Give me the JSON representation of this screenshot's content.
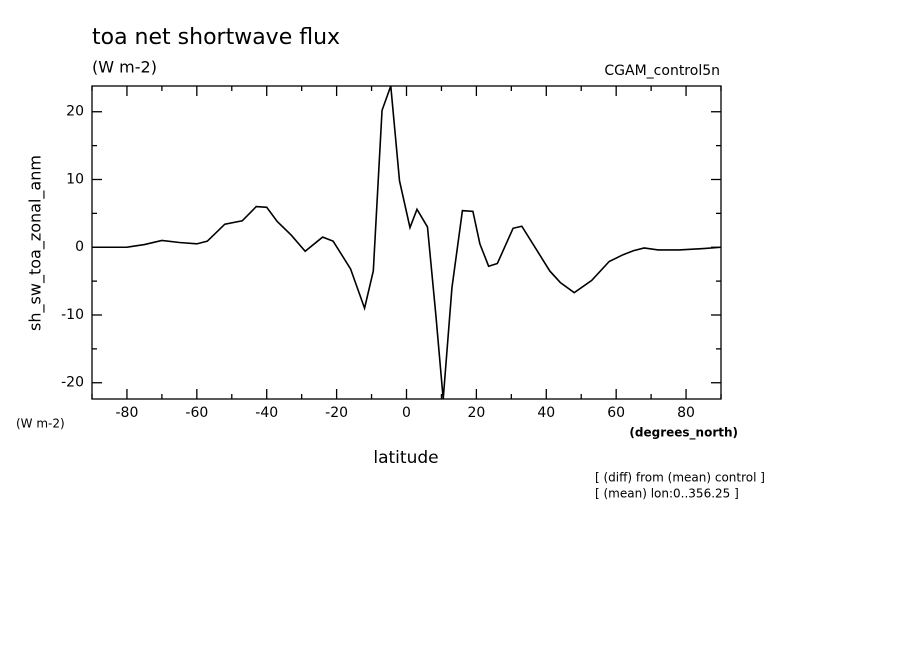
{
  "chart_data": {
    "type": "line",
    "title": "toa net shortwave flux",
    "subtitle": "(W m-2)",
    "dataset": "CGAM_control5n",
    "ylabel": "sh_sw_toa_zonal_anm",
    "yunits": "(W m-2)",
    "xlabel": "latitude",
    "xunits": "(degrees_north)",
    "annotations": [
      "[ (diff) from (mean) control ]",
      "[ (mean) lon:0..356.25 ]"
    ],
    "x": [
      -90,
      -80,
      -75,
      -70,
      -65,
      -60,
      -57,
      -52,
      -47,
      -43,
      -40,
      -37,
      -33,
      -29,
      -24,
      -21,
      -16,
      -12,
      -9.5,
      -7,
      -4.5,
      -2,
      1,
      3,
      6,
      8.4,
      10.5,
      13,
      16,
      19,
      21,
      23.5,
      26,
      30.5,
      33,
      37,
      41,
      44,
      48,
      53,
      58,
      62,
      65,
      68,
      72,
      78,
      85,
      90
    ],
    "series": [
      {
        "name": "sh_sw_toa_zonal_anm",
        "color": "#000000",
        "values": [
          0,
          0,
          0.4,
          1.0,
          0.7,
          0.5,
          0.9,
          3.4,
          3.9,
          6.0,
          5.9,
          3.8,
          1.8,
          -0.6,
          1.5,
          0.9,
          -3.2,
          -9.0,
          -3.5,
          20.2,
          23.8,
          9.8,
          2.9,
          5.6,
          3.0,
          -10,
          -22.4,
          -6,
          5.4,
          5.3,
          0.5,
          -2.8,
          -2.4,
          2.8,
          3.1,
          -0.2,
          -3.5,
          -5.2,
          -6.7,
          -4.9,
          -2.1,
          -1.1,
          -0.5,
          -0.1,
          -0.4,
          -0.4,
          -0.2,
          0
        ]
      }
    ],
    "xlim": [
      -90,
      90
    ],
    "ylim": [
      -22.4,
      23.8
    ],
    "xticks": [
      -80,
      -60,
      -40,
      -20,
      0,
      20,
      40,
      60,
      80
    ],
    "yticks": [
      -20,
      -10,
      0,
      10,
      20
    ],
    "xminorticks": [
      -90,
      -70,
      -50,
      -30,
      -10,
      10,
      30,
      50,
      70,
      90
    ],
    "yminorticks": [
      -15,
      -5,
      5,
      15
    ],
    "grid": false
  }
}
